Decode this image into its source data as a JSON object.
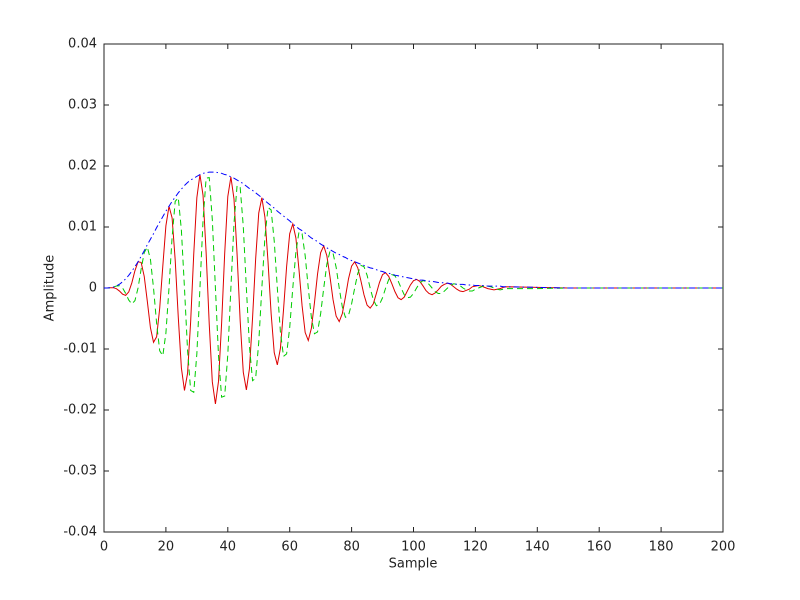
{
  "chart_data": {
    "type": "line",
    "xlabel": "Sample",
    "ylabel": "Amplitude",
    "x": [
      0,
      1,
      2,
      3,
      4,
      5,
      6,
      7,
      8,
      9,
      10,
      11,
      12,
      13,
      14,
      15,
      16,
      17,
      18,
      19,
      20,
      21,
      22,
      23,
      24,
      25,
      26,
      27,
      28,
      29,
      30,
      31,
      32,
      33,
      34,
      35,
      36,
      37,
      38,
      39,
      40,
      41,
      42,
      43,
      44,
      45,
      46,
      47,
      48,
      49,
      50,
      51,
      52,
      53,
      54,
      55,
      56,
      57,
      58,
      59,
      60,
      61,
      62,
      63,
      64,
      65,
      66,
      67,
      68,
      69,
      70,
      71,
      72,
      73,
      74,
      75,
      76,
      77,
      78,
      79,
      80,
      81,
      82,
      83,
      84,
      85,
      86,
      87,
      88,
      89,
      90,
      91,
      92,
      93,
      94,
      95,
      96,
      97,
      98,
      99,
      100,
      101,
      102,
      103,
      104,
      105,
      106,
      107,
      108,
      109,
      110,
      111,
      112,
      113,
      114,
      115,
      116,
      117,
      118,
      119,
      120,
      121,
      122,
      123,
      124,
      125,
      126,
      127,
      128,
      129,
      130,
      140,
      150,
      160,
      170,
      180,
      190,
      200
    ],
    "series": [
      {
        "color": "#dd0000",
        "linestyle": "solid",
        "values": [
          0,
          1e-05,
          4e-05,
          5e-05,
          -0.00011,
          -0.0005,
          -0.00101,
          -0.00121,
          -0.00064,
          0.00085,
          0.00284,
          0.0043,
          0.0042,
          0.0019,
          -0.0022,
          -0.0065,
          -0.0089,
          -0.008,
          -0.0033,
          0.0036,
          0.0102,
          0.0134,
          0.0115,
          0.0046,
          -0.0048,
          -0.0131,
          -0.0168,
          -0.014,
          -0.0055,
          0.0056,
          0.0148,
          0.0186,
          0.0152,
          0.0058,
          -0.0059,
          -0.0154,
          -0.019,
          -0.0153,
          -0.0058,
          0.0057,
          0.015,
          0.0182,
          0.0146,
          0.0055,
          -0.0054,
          -0.0138,
          -0.0167,
          -0.0132,
          -0.0049,
          0.0048,
          0.0123,
          0.0148,
          0.0116,
          0.0043,
          -0.0042,
          -0.0106,
          -0.0126,
          -0.0099,
          -0.0036,
          0.0035,
          0.0089,
          0.0105,
          0.0082,
          0.003,
          -0.0029,
          -0.0073,
          -0.0086,
          -0.0066,
          -0.0024,
          0.0023,
          0.0058,
          0.0069,
          0.0053,
          0.0019,
          -0.0019,
          -0.0046,
          -0.0055,
          -0.0042,
          -0.0015,
          0.0015,
          0.0036,
          0.0043,
          0.0033,
          0.0012,
          -0.0011,
          -0.0028,
          -0.0033,
          -0.0026,
          -0.0009,
          0.0009,
          0.0022,
          0.0025,
          0.0019,
          0.0007,
          -0.0006,
          -0.0016,
          -0.0019,
          -0.0015,
          -0.0005,
          0.0005,
          0.0012,
          0.0014,
          0.0011,
          0.0004,
          -0.0004,
          -0.0009,
          -0.0011,
          -0.0008,
          -0.0003,
          0.0003,
          0.0006,
          0.0008,
          0.0006,
          0.0002,
          -0.0002,
          -0.0005,
          -0.0006,
          -0.0004,
          -0.0002,
          0.0002,
          0.0003,
          0.0004,
          0.0003,
          0.0001,
          -0.0001,
          -0.0002,
          -0.0003,
          -0.0002,
          -0.0001,
          0.0001,
          0.0002,
          0.0001,
          0,
          0,
          0,
          0,
          0,
          0
        ]
      },
      {
        "color": "#00cc00",
        "linestyle": "dashed",
        "values": [
          0,
          0,
          3e-05,
          0.00014,
          0.00032,
          0.00036,
          0,
          -0.00088,
          -0.00198,
          -0.00262,
          -0.00206,
          0,
          0.0031,
          0.0058,
          0.0067,
          0.0047,
          0,
          -0.0058,
          -0.0103,
          -0.0111,
          -0.0074,
          0,
          0.0083,
          0.0142,
          0.0148,
          0.0095,
          0,
          -0.0102,
          -0.0168,
          -0.0171,
          -0.0108,
          0,
          0.0111,
          0.018,
          0.0181,
          0.0112,
          0,
          -0.0111,
          -0.0179,
          -0.0177,
          -0.0109,
          0,
          0.0106,
          0.0168,
          0.0165,
          0.0101,
          0,
          -0.0096,
          -0.0152,
          -0.0148,
          -0.0089,
          0,
          0.0084,
          0.0132,
          0.0128,
          0.0077,
          0,
          -0.0072,
          -0.0112,
          -0.0108,
          -0.0065,
          0,
          0.0059,
          0.0092,
          0.0089,
          0.0053,
          0,
          -0.0048,
          -0.0075,
          -0.0072,
          -0.0042,
          0,
          0.0039,
          0.006,
          0.0057,
          0.0034,
          0,
          -0.0031,
          -0.0048,
          -0.0045,
          -0.0026,
          0,
          0.0024,
          0.0037,
          0.0035,
          0.0021,
          0,
          -0.0019,
          -0.0029,
          -0.0027,
          -0.0016,
          0,
          0.0014,
          0.0022,
          0.002,
          0.0012,
          0,
          -0.0011,
          -0.0016,
          -0.0015,
          -0.0009,
          0,
          0.0008,
          0.0012,
          0.0011,
          0.0006,
          0,
          -0.0006,
          -0.0009,
          -0.0009,
          -0.0005,
          0,
          0.0004,
          0.0007,
          0.0006,
          0.0004,
          0,
          -0.0003,
          -0.0005,
          -0.0005,
          -0.0002,
          0,
          0.0002,
          0.0004,
          0.0003,
          0.0002,
          0,
          -0.0002,
          -0.0003,
          -0.0002,
          -0.0001,
          -0.0001,
          0,
          0,
          0,
          0,
          0,
          0
        ]
      },
      {
        "color": "#0000ff",
        "linestyle": "dashdot",
        "values": [
          0,
          1e-05,
          5e-05,
          0.00015,
          0.00034,
          0.00062,
          0.00101,
          0.0015,
          0.00208,
          0.00276,
          0.00351,
          0.0043,
          0.0052,
          0.0061,
          0.0071,
          0.008,
          0.0089,
          0.0099,
          0.0108,
          0.0117,
          0.0126,
          0.0134,
          0.0142,
          0.0149,
          0.0156,
          0.0162,
          0.0168,
          0.0173,
          0.0177,
          0.018,
          0.0183,
          0.0186,
          0.0188,
          0.0189,
          0.019,
          0.019,
          0.019,
          0.0189,
          0.0188,
          0.0186,
          0.0185,
          0.0182,
          0.018,
          0.0177,
          0.0174,
          0.0171,
          0.0167,
          0.0163,
          0.016,
          0.0156,
          0.0152,
          0.0148,
          0.0143,
          0.0139,
          0.0135,
          0.0131,
          0.0126,
          0.0122,
          0.0118,
          0.0114,
          0.011,
          0.0105,
          0.0101,
          0.0097,
          0.0094,
          0.009,
          0.0086,
          0.0082,
          0.0079,
          0.0076,
          0.0072,
          0.0069,
          0.0066,
          0.0063,
          0.006,
          0.0057,
          0.0055,
          0.0052,
          0.005,
          0.0047,
          0.0045,
          0.0043,
          0.0041,
          0.0039,
          0.0037,
          0.0035,
          0.0033,
          0.0032,
          0.003,
          0.0028,
          0.0027,
          0.0025,
          0.0024,
          0.0023,
          0.0021,
          0.002,
          0.0019,
          0.0018,
          0.0017,
          0.0016,
          0.0015,
          0.0014,
          0.0013,
          0.0013,
          0.0012,
          0.0011,
          0.0011,
          0.001,
          0.0009,
          0.0009,
          0.0008,
          0.0008,
          0.0007,
          0.0007,
          0.0006,
          0.0006,
          0.0006,
          0.0005,
          0.0005,
          0.0005,
          0.0004,
          0.0004,
          0.0004,
          0.0004,
          0.0003,
          0.0003,
          0.0003,
          0.0003,
          0.0003,
          0.0002,
          0.0002,
          0.0001,
          0,
          0,
          0,
          0,
          0,
          0
        ]
      }
    ],
    "xlim": [
      0,
      200
    ],
    "xticks": [
      0,
      20,
      40,
      60,
      80,
      100,
      120,
      140,
      160,
      180,
      200
    ],
    "ylim": [
      -0.04,
      0.04
    ],
    "yticks": [
      -0.04,
      -0.03,
      -0.02,
      -0.01,
      0,
      0.01,
      0.02,
      0.03,
      0.04
    ],
    "grid": false
  }
}
